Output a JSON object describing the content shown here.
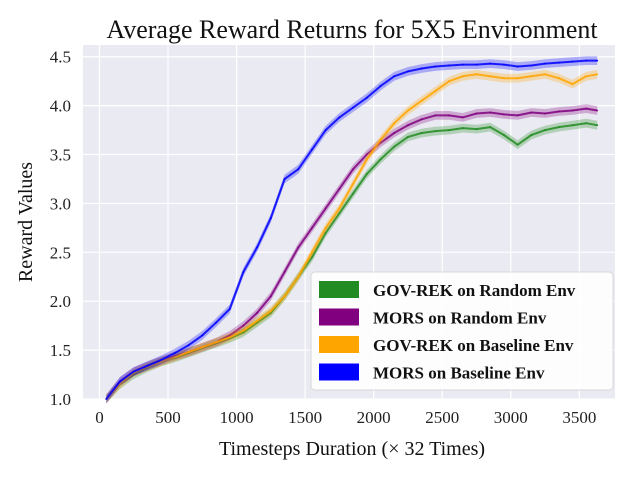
{
  "chart_data": {
    "type": "line",
    "title": "Average Reward Returns for 5X5 Environment",
    "xlabel": "Timesteps Duration (× 32 Times)",
    "ylabel": "Reward Values",
    "xlim": [
      -120,
      3760
    ],
    "ylim": [
      1.0,
      4.62
    ],
    "xticks": [
      0,
      500,
      1000,
      1500,
      2000,
      2500,
      3000,
      3500
    ],
    "yticks": [
      1.0,
      1.5,
      2.0,
      2.5,
      3.0,
      3.5,
      4.0,
      4.5
    ],
    "xtick_labels": [
      "0",
      "500",
      "1000",
      "1500",
      "2000",
      "2500",
      "3000",
      "3500"
    ],
    "ytick_labels": [
      "1.0",
      "1.5",
      "2.0",
      "2.5",
      "3.0",
      "3.5",
      "4.0",
      "4.5"
    ],
    "grid": true,
    "background": "#eaeaf2",
    "legend_position": "lower-right",
    "x": [
      50,
      150,
      250,
      350,
      450,
      550,
      650,
      750,
      850,
      950,
      1050,
      1150,
      1250,
      1350,
      1450,
      1550,
      1650,
      1750,
      1850,
      1950,
      2050,
      2150,
      2250,
      2350,
      2450,
      2550,
      2650,
      2750,
      2850,
      2950,
      3050,
      3150,
      3250,
      3350,
      3450,
      3550,
      3630
    ],
    "series": [
      {
        "name": "GOV-REK on Random Env",
        "color": "#228b22",
        "values": [
          1.0,
          1.15,
          1.25,
          1.32,
          1.38,
          1.42,
          1.47,
          1.52,
          1.57,
          1.62,
          1.68,
          1.78,
          1.88,
          2.05,
          2.25,
          2.45,
          2.7,
          2.9,
          3.1,
          3.3,
          3.45,
          3.58,
          3.68,
          3.72,
          3.74,
          3.75,
          3.77,
          3.76,
          3.78,
          3.7,
          3.6,
          3.7,
          3.75,
          3.78,
          3.8,
          3.82,
          3.8
        ]
      },
      {
        "name": "MORS on Random Env",
        "color": "#800080",
        "values": [
          1.0,
          1.18,
          1.28,
          1.34,
          1.39,
          1.44,
          1.48,
          1.53,
          1.58,
          1.65,
          1.75,
          1.88,
          2.05,
          2.3,
          2.55,
          2.75,
          2.95,
          3.15,
          3.35,
          3.5,
          3.62,
          3.72,
          3.8,
          3.86,
          3.9,
          3.9,
          3.88,
          3.92,
          3.93,
          3.91,
          3.9,
          3.93,
          3.92,
          3.94,
          3.95,
          3.97,
          3.95
        ]
      },
      {
        "name": "GOV-REK on Baseline Env",
        "color": "#ffa500",
        "values": [
          1.0,
          1.15,
          1.27,
          1.33,
          1.38,
          1.43,
          1.48,
          1.53,
          1.58,
          1.63,
          1.7,
          1.8,
          1.9,
          2.05,
          2.25,
          2.5,
          2.75,
          2.95,
          3.2,
          3.45,
          3.65,
          3.82,
          3.95,
          4.05,
          4.15,
          4.25,
          4.3,
          4.32,
          4.3,
          4.28,
          4.28,
          4.3,
          4.32,
          4.28,
          4.22,
          4.3,
          4.32
        ]
      },
      {
        "name": "MORS on Baseline Env",
        "color": "#0000ff",
        "values": [
          1.0,
          1.18,
          1.28,
          1.34,
          1.4,
          1.47,
          1.55,
          1.65,
          1.78,
          1.92,
          2.3,
          2.55,
          2.85,
          3.25,
          3.35,
          3.55,
          3.75,
          3.88,
          3.98,
          4.08,
          4.2,
          4.3,
          4.35,
          4.38,
          4.4,
          4.41,
          4.42,
          4.42,
          4.43,
          4.42,
          4.4,
          4.41,
          4.43,
          4.44,
          4.45,
          4.46,
          4.46
        ]
      }
    ]
  }
}
